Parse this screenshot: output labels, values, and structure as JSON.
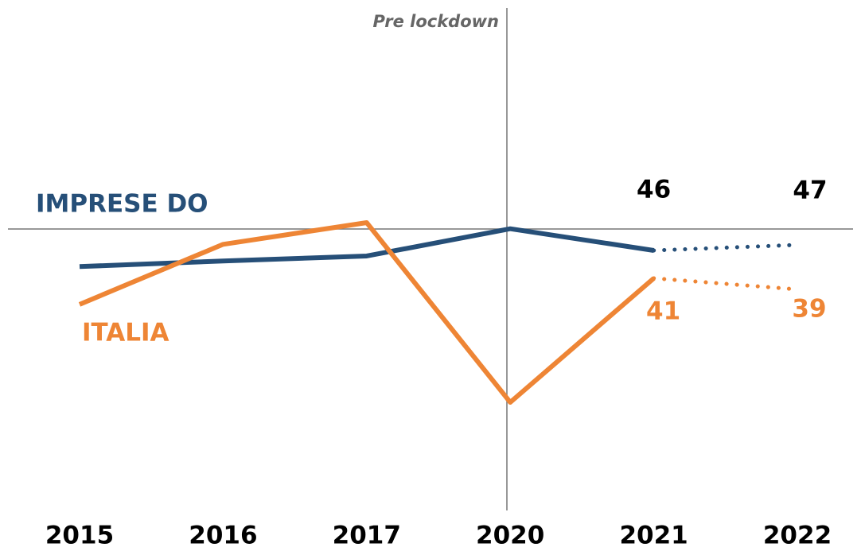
{
  "chart_data": {
    "type": "line",
    "annotation": "Pre lockdown",
    "categories": [
      "2015",
      "2016",
      "2017",
      "2020",
      "2021",
      "2022"
    ],
    "series": [
      {
        "name": "IMPRESE DO",
        "color": "#264f78",
        "label_color": "#000000",
        "values": [
          43.1,
          44.1,
          45,
          49.9,
          46,
          47
        ]
      },
      {
        "name": "ITALIA",
        "color": "#ee8535",
        "label_color": "#ee8535",
        "values": [
          36.3,
          47.1,
          51,
          18.7,
          41,
          39
        ]
      }
    ]
  }
}
